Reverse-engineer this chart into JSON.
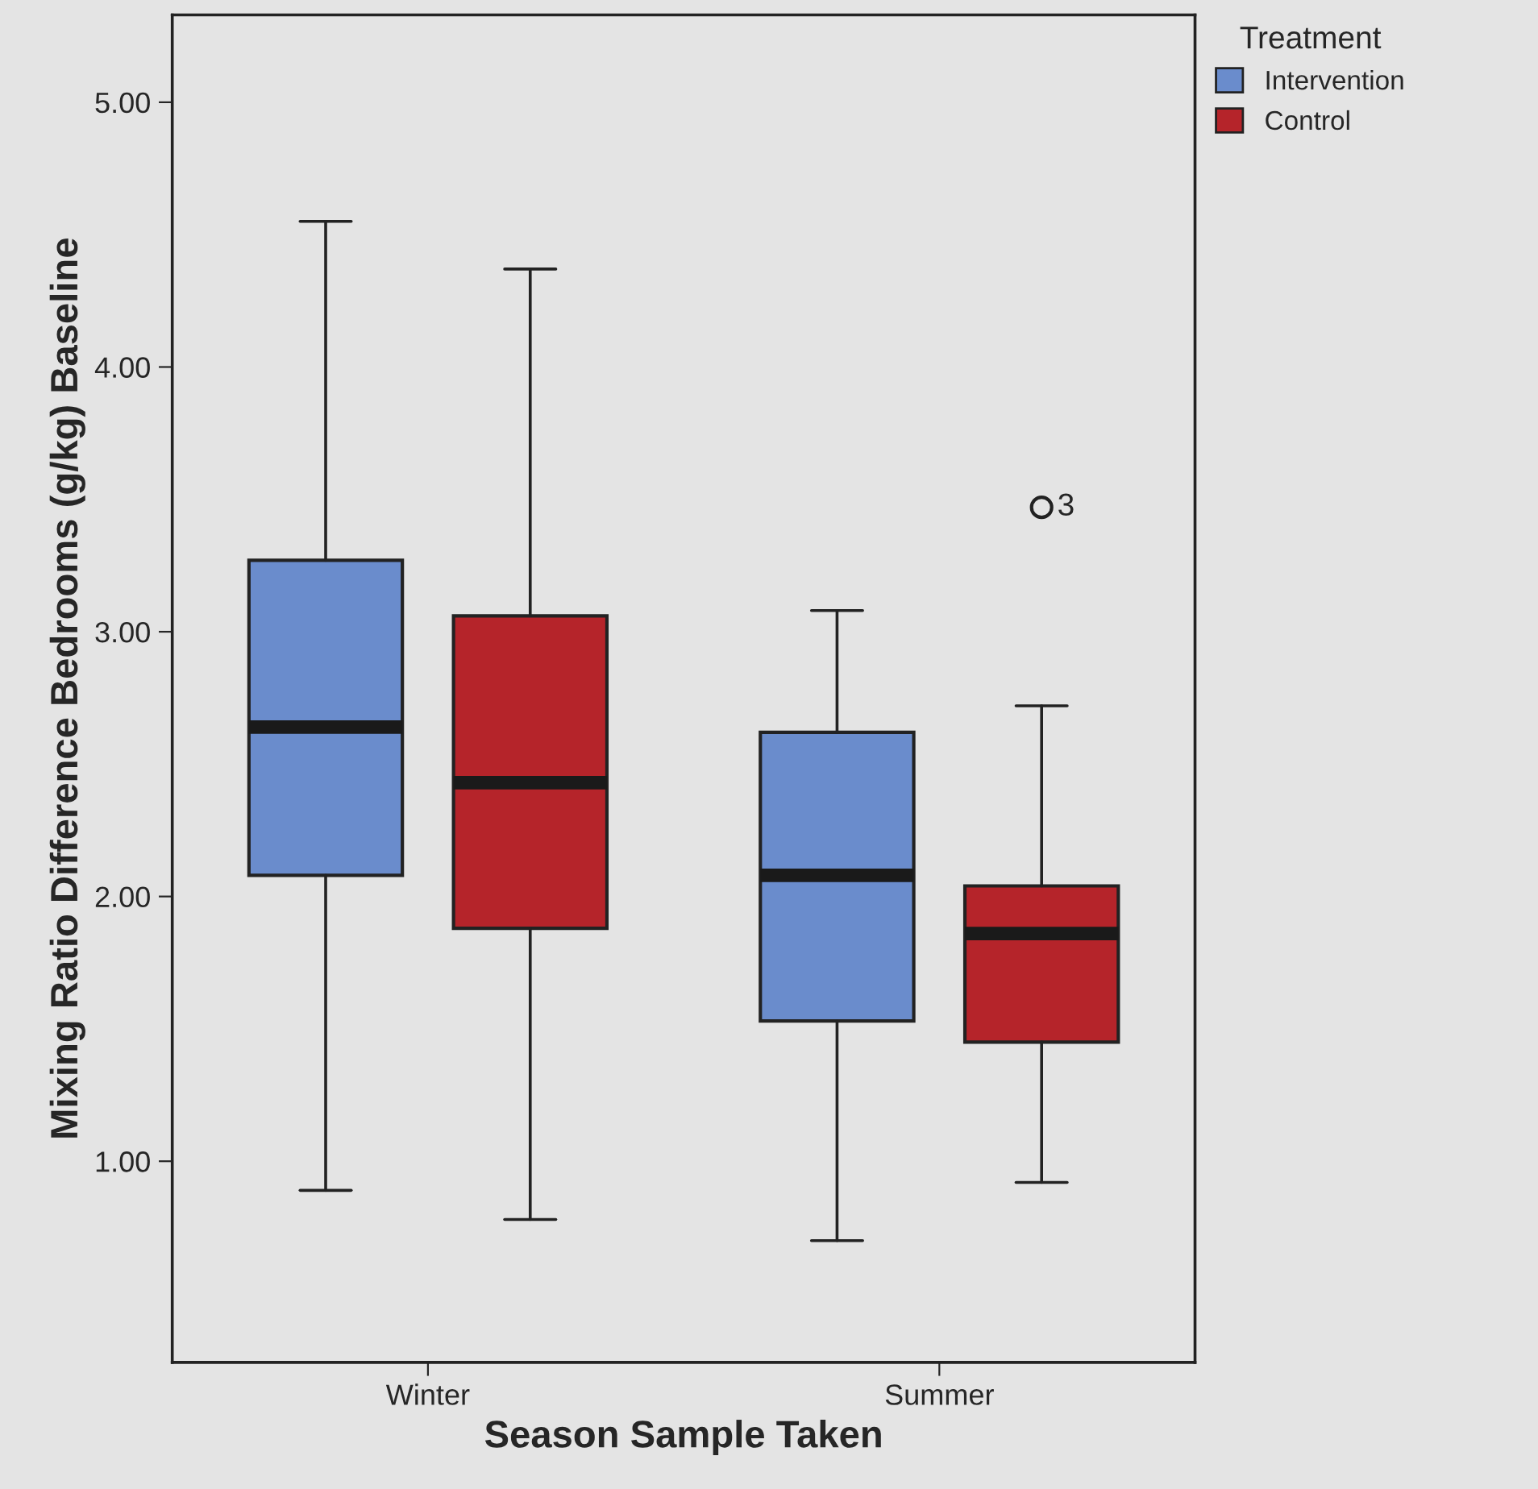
{
  "chart_data": {
    "type": "box",
    "xlabel": "Season Sample Taken",
    "ylabel": "Mixing Ratio Difference Bedrooms (g/kg) Baseline",
    "legend_title": "Treatment",
    "legend": "top right",
    "grid": false,
    "categories": [
      "Winter",
      "Summer"
    ],
    "series": [
      {
        "name": "Intervention",
        "color": "#6a8ccc",
        "boxes": [
          {
            "low": 0.89,
            "q1": 2.08,
            "median": 2.64,
            "q3": 3.27,
            "high": 4.55
          },
          {
            "low": 0.7,
            "q1": 1.53,
            "median": 2.08,
            "q3": 2.62,
            "high": 3.08
          }
        ]
      },
      {
        "name": "Control",
        "color": "#b5242a",
        "boxes": [
          {
            "low": 0.78,
            "q1": 1.88,
            "median": 2.43,
            "q3": 3.06,
            "high": 4.37
          },
          {
            "low": 0.92,
            "q1": 1.45,
            "median": 1.86,
            "q3": 2.04,
            "high": 2.72,
            "outliers": [
              3.47
            ]
          }
        ]
      }
    ],
    "annotations": [
      "3"
    ],
    "ylim": [
      0.24,
      5.33
    ],
    "yticks": [
      {
        "value": 1,
        "label": "1.00"
      },
      {
        "value": 2,
        "label": "2.00"
      },
      {
        "value": 3,
        "label": "3.00"
      },
      {
        "value": 4,
        "label": "4.00"
      },
      {
        "value": 5,
        "label": "5.00"
      }
    ]
  }
}
